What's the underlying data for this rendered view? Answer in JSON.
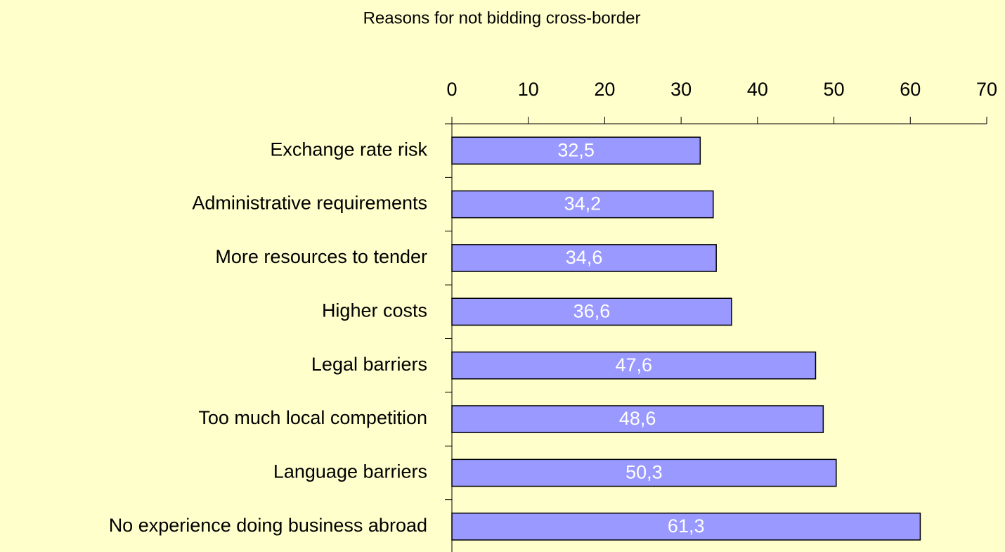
{
  "chart_data": {
    "type": "bar",
    "orientation": "horizontal",
    "title": "Reasons for not bidding cross-border",
    "categories": [
      "Exchange rate risk",
      "Administrative requirements",
      "More resources to tender",
      "Higher costs",
      "Legal barriers",
      "Too much local competition",
      "Language barriers",
      "No experience doing business abroad"
    ],
    "values": [
      32.5,
      34.2,
      34.6,
      36.6,
      47.6,
      48.6,
      50.3,
      61.3
    ],
    "value_labels": [
      "32,5",
      "34,2",
      "34,6",
      "36,6",
      "47,6",
      "48,6",
      "50,3",
      "61,3"
    ],
    "color": "#9999ff",
    "xlim": [
      0,
      70
    ],
    "xticks": [
      0,
      10,
      20,
      30,
      40,
      50,
      60,
      70
    ],
    "grid": false
  }
}
